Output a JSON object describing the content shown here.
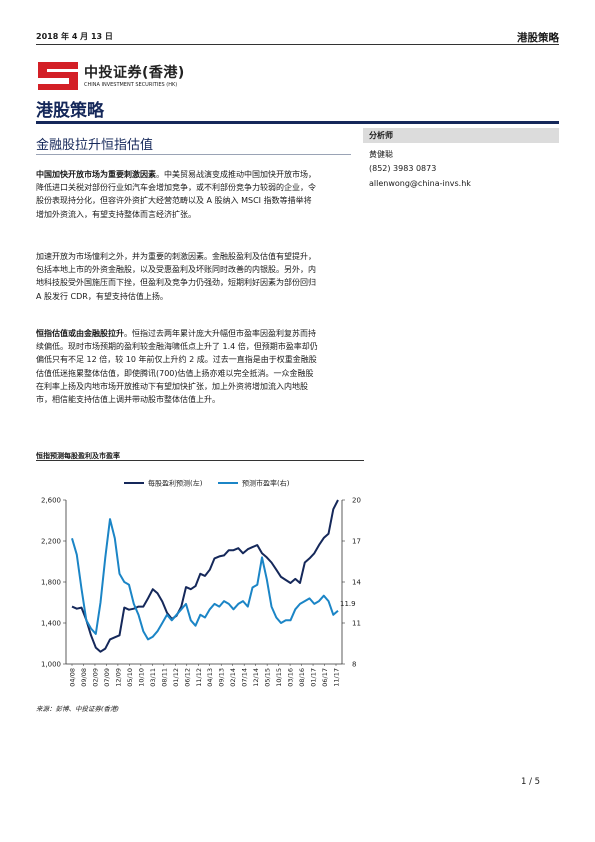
{
  "header": {
    "date": "2018 年 4 月 13 日",
    "title": "港股策略"
  },
  "logo": {
    "cn": "中投证券(香港)",
    "en": "CHINA INVESTMENT SECURITIES (HK)"
  },
  "section_title": "港股策略",
  "article_title": "金融股拉升恒指估值",
  "sidebar": {
    "heading": "分析师",
    "name": "黄健聪",
    "phone": "(852) 3983 0873",
    "email": "allenwong@china-invs.hk"
  },
  "paragraphs": [
    {
      "bold": "中国加快开放市场为重要刺激因素",
      "lines": [
        "。中美贸易战演变成推动中国加快开放市场，",
        "降低进口关税对部份行业如汽车会增加竞争，或不利部份竞争力较弱的企业，令",
        "股份表现持分化，但容许外资扩大经营范畴以及 A 股纳入 MSCI 指数等措举将",
        "增加外资流入，有望支持整体而言经济扩张。"
      ]
    },
    {
      "bold": "",
      "lines": [
        "加速开放为市场憧利之外，并为重要的刺激因素。金融股盈利及估值有望提升，",
        "包括本地上市的外资金融股，以及受惠盈利及坏账同时改善的内银股。另外，内",
        "地科技股受外国施压而下挫，但盈利及竞争力仍强劲，短期利好因素为部份回归",
        "A 股发行 CDR，有望支持估值上扬。"
      ]
    },
    {
      "bold": "恒指估值或由金融股拉升",
      "lines": [
        "。恒指过去两年累计庞大升幅但市盈率因盈利复苏而持",
        "续偏低。现时市场预期的盈利较金融海啸低点上升了 1.4 倍，但预期市盈率却仍",
        "偏低只有不足 12 倍，较 10 年前仅上升约 2 成。过去一直指是由于权重金融股",
        "估值低迷拖累整体估值，即使腾讯(700)估值上扬亦难以完全抵消。一众金融股",
        "在利率上扬及内地市场开放推动下有望加快扩张，加上外资将增加流入内地股",
        "市，相信能支持估值上调并带动股市整体估值上升。"
      ]
    }
  ],
  "chart_title": "恒指预测每股盈利及市盈率",
  "chart_data": {
    "type": "line",
    "x_tick_labels": [
      "04/08",
      "09/08",
      "02/09",
      "07/09",
      "12/09",
      "05/10",
      "10/10",
      "03/11",
      "08/11",
      "01/12",
      "06/12",
      "11/12",
      "04/13",
      "09/13",
      "02/14",
      "07/14",
      "12/14",
      "05/15",
      "10/15",
      "03/16",
      "08/16",
      "01/17",
      "06/17",
      "11/17"
    ],
    "left_axis": {
      "ticks": [
        1000,
        1400,
        1800,
        2200,
        2600
      ],
      "range": [
        1000,
        2600
      ]
    },
    "right_axis": {
      "ticks": [
        8,
        11,
        14,
        17,
        20
      ],
      "range": [
        8,
        20
      ]
    },
    "annotation": "11.9",
    "series": [
      {
        "name": "每股盈利预测(左)",
        "axis": "left",
        "color": "#15285a",
        "values": [
          1560,
          1540,
          1550,
          1430,
          1280,
          1160,
          1120,
          1150,
          1240,
          1260,
          1280,
          1550,
          1530,
          1540,
          1560,
          1560,
          1640,
          1730,
          1690,
          1610,
          1500,
          1440,
          1470,
          1560,
          1750,
          1730,
          1760,
          1880,
          1860,
          1920,
          2030,
          2050,
          2060,
          2110,
          2110,
          2130,
          2080,
          2120,
          2140,
          2160,
          2080,
          2040,
          1990,
          1920,
          1850,
          1820,
          1790,
          1830,
          1790,
          1990,
          2030,
          2080,
          2160,
          2230,
          2270,
          2510,
          2600
        ]
      },
      {
        "name": "预测市盈率(右)",
        "axis": "right",
        "color": "#1b85c6",
        "values": [
          17.2,
          16.0,
          13.5,
          11.2,
          10.6,
          10.2,
          12.5,
          15.8,
          18.6,
          17.2,
          14.6,
          14.0,
          13.8,
          12.4,
          11.6,
          10.4,
          9.8,
          10.0,
          10.4,
          11.0,
          11.6,
          11.2,
          11.6,
          12.0,
          12.4,
          11.2,
          10.8,
          11.6,
          11.4,
          12.0,
          12.4,
          12.2,
          12.6,
          12.4,
          12.0,
          12.4,
          12.6,
          12.2,
          13.6,
          13.8,
          15.8,
          14.2,
          12.2,
          11.4,
          11.0,
          11.2,
          11.2,
          12.0,
          12.4,
          12.6,
          12.8,
          12.4,
          12.6,
          13.0,
          12.6,
          11.6,
          11.9
        ]
      }
    ]
  },
  "source": "来源：彭博、中投证券(香港)",
  "page_number": "1 / 5"
}
